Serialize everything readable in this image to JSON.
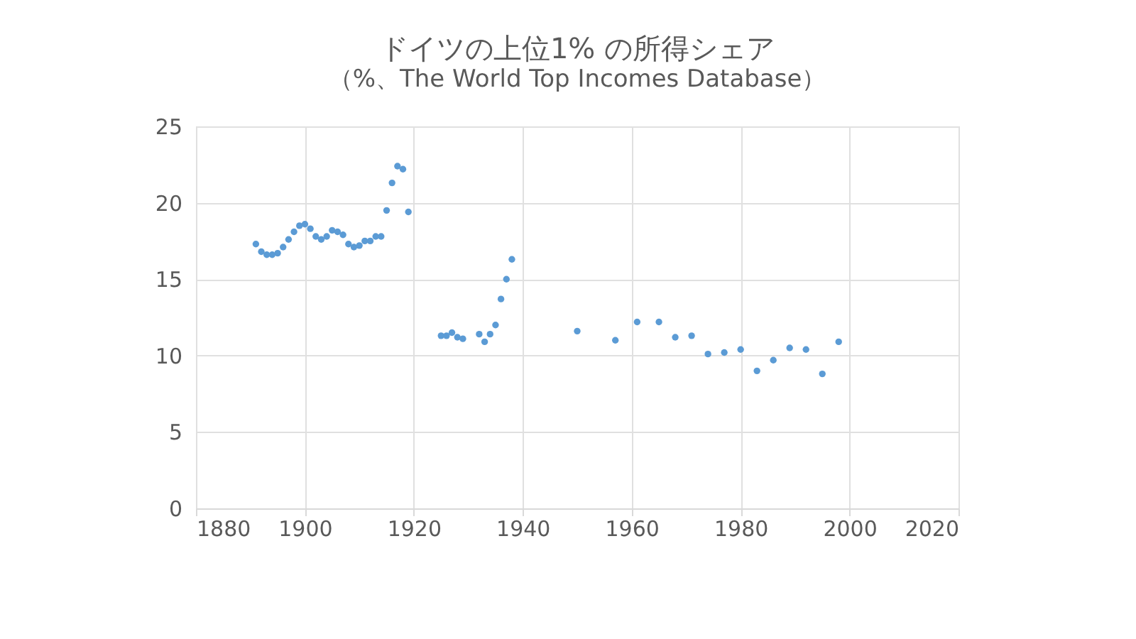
{
  "chart_data": {
    "type": "scatter",
    "title": "ドイツの上位1% の所得シェア",
    "subtitle": "（%、The World Top Incomes Database）",
    "x": [
      1891,
      1892,
      1893,
      1894,
      1895,
      1896,
      1897,
      1898,
      1899,
      1900,
      1901,
      1902,
      1903,
      1904,
      1905,
      1906,
      1907,
      1908,
      1909,
      1910,
      1911,
      1912,
      1913,
      1914,
      1915,
      1916,
      1917,
      1918,
      1919,
      1925,
      1926,
      1927,
      1928,
      1929,
      1932,
      1933,
      1934,
      1935,
      1936,
      1937,
      1938,
      1950,
      1957,
      1961,
      1965,
      1968,
      1971,
      1974,
      1977,
      1980,
      1983,
      1986,
      1989,
      1992,
      1995,
      1998
    ],
    "series": [
      {
        "color": "#5b9bd5",
        "values": [
          17.3,
          16.8,
          16.6,
          16.6,
          16.7,
          17.1,
          17.6,
          18.1,
          18.5,
          18.6,
          18.3,
          17.8,
          17.6,
          17.8,
          18.2,
          18.1,
          17.9,
          17.3,
          17.1,
          17.2,
          17.5,
          17.5,
          17.8,
          17.8,
          19.5,
          21.3,
          22.4,
          22.2,
          19.4,
          11.3,
          11.3,
          11.5,
          11.2,
          11.1,
          11.4,
          10.9,
          11.4,
          12.0,
          13.7,
          15.0,
          16.3,
          11.6,
          11.0,
          12.2,
          12.2,
          11.2,
          11.3,
          10.1,
          10.2,
          10.4,
          9.0,
          9.7,
          10.5,
          10.4,
          8.8,
          10.9
        ]
      }
    ],
    "xlim": [
      1880,
      2020
    ],
    "xticks": [
      1880,
      1900,
      1920,
      1940,
      1960,
      1980,
      2000,
      2020
    ],
    "ylim": [
      0,
      25
    ],
    "yticks": [
      0,
      5,
      10,
      15,
      20,
      25
    ],
    "grid": true,
    "marker": "circle"
  }
}
